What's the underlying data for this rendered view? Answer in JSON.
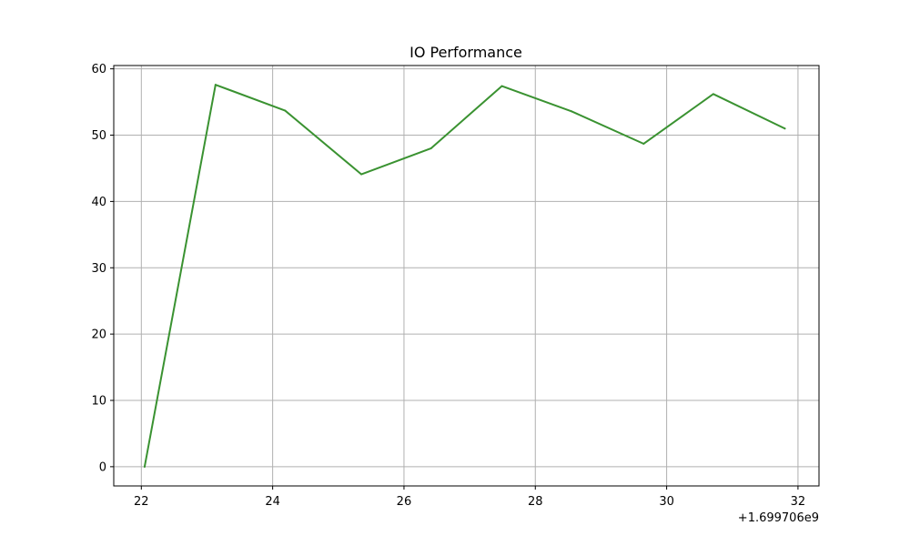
{
  "chart_data": {
    "type": "line",
    "title": "IO Performance",
    "xlabel": "",
    "ylabel": "",
    "x_offset_label": "+1.699706e9",
    "xlim": [
      21.58,
      32.32
    ],
    "ylim": [
      -2.9,
      60.5
    ],
    "x_ticks": [
      22,
      24,
      26,
      28,
      30,
      32
    ],
    "y_ticks": [
      0,
      10,
      20,
      30,
      40,
      50,
      60
    ],
    "grid": true,
    "legend": "none",
    "series": [
      {
        "color": "#3a9231",
        "x": [
          22.05,
          23.13,
          24.19,
          25.35,
          26.41,
          27.49,
          28.55,
          29.65,
          30.71,
          31.8
        ],
        "y": [
          0.0,
          57.6,
          53.7,
          44.1,
          48.0,
          57.4,
          53.6,
          48.7,
          56.2,
          51.0
        ]
      }
    ]
  }
}
